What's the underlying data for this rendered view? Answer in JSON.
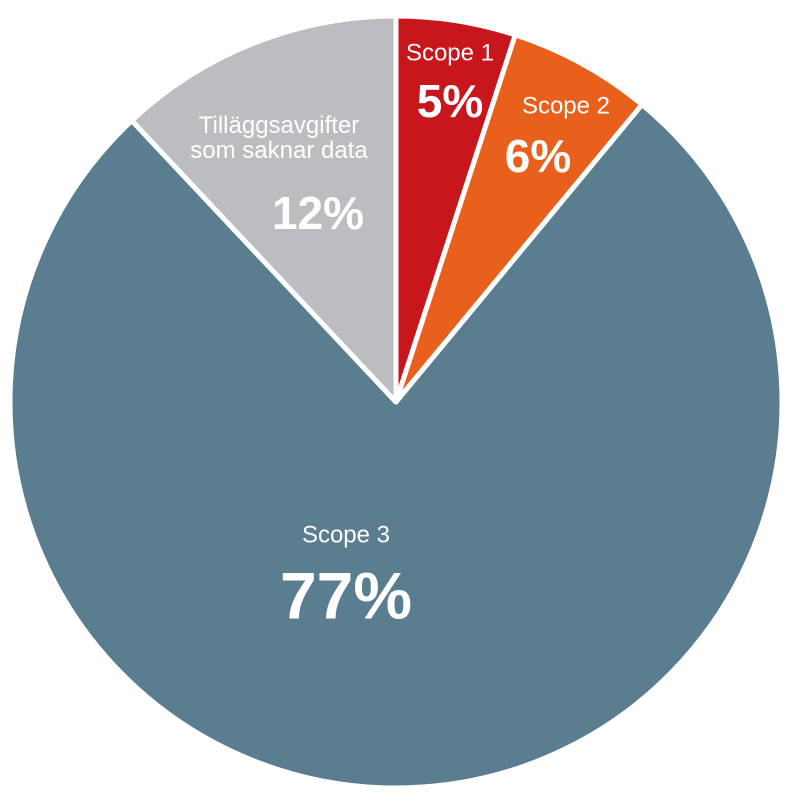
{
  "chart_data": {
    "type": "pie",
    "categories": [
      "Scope 1",
      "Scope 2",
      "Scope 3",
      "Tilläggsavgifter som saknar data"
    ],
    "values": [
      5,
      6,
      77,
      12
    ],
    "value_labels": [
      "5%",
      "6%",
      "77%",
      "12%"
    ],
    "colors": [
      "#c8161d",
      "#e8601c",
      "#5a7d90",
      "#bcbdc0"
    ]
  }
}
